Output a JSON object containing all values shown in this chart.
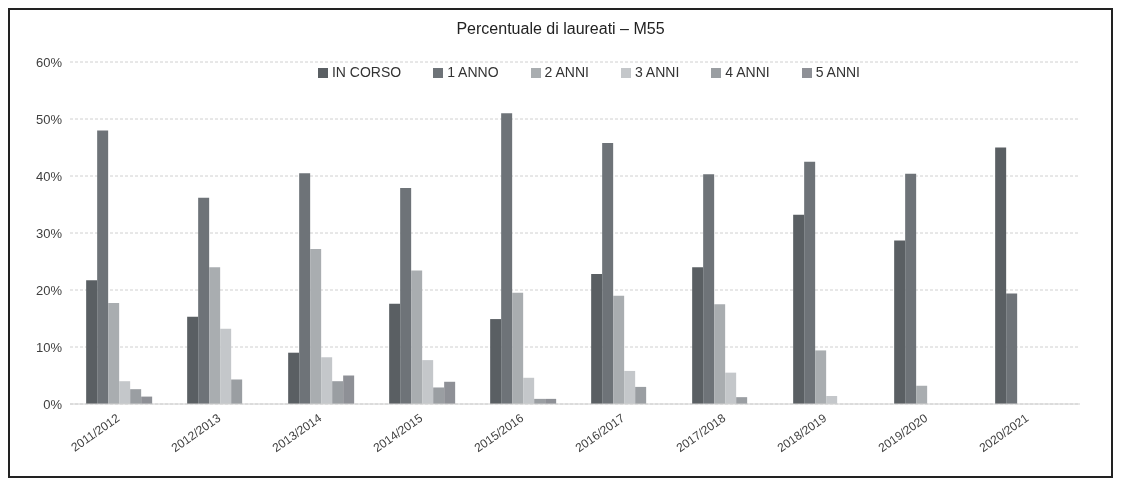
{
  "chart_data": {
    "type": "bar",
    "title": "Percentuale di laureati – M55",
    "categories": [
      "2011/2012",
      "2012/2013",
      "2013/2014",
      "2014/2015",
      "2015/2016",
      "2016/2017",
      "2017/2018",
      "2018/2019",
      "2019/2020",
      "2020/2021"
    ],
    "series": [
      {
        "name": "IN CORSO",
        "color": "#5a5f63",
        "values": [
          21.7,
          15.3,
          9,
          17.6,
          14.9,
          22.8,
          24,
          33.2,
          28.7,
          45
        ]
      },
      {
        "name": "1 ANNO",
        "color": "#6e7378",
        "values": [
          48,
          36.2,
          40.5,
          37.9,
          51,
          45.8,
          40.3,
          42.5,
          40.4,
          19.4
        ]
      },
      {
        "name": "2 ANNI",
        "color": "#a9adb0",
        "values": [
          17.7,
          24,
          27.2,
          23.4,
          19.5,
          19,
          17.5,
          9.4,
          3.2,
          null
        ]
      },
      {
        "name": "3 ANNI",
        "color": "#c4c7ca",
        "values": [
          4,
          13.2,
          8.2,
          7.7,
          4.6,
          5.8,
          5.5,
          1.4,
          null,
          null
        ]
      },
      {
        "name": "4 ANNI",
        "color": "#9a9ea2",
        "values": [
          2.6,
          4.3,
          4,
          2.9,
          0.9,
          3,
          1.2,
          null,
          null,
          null
        ]
      },
      {
        "name": "5 ANNI",
        "color": "#8e9096",
        "values": [
          1.3,
          null,
          5,
          3.9,
          0.9,
          null,
          null,
          null,
          null,
          null
        ]
      }
    ],
    "ylim": [
      0,
      60
    ],
    "yticks": [
      {
        "value": 0,
        "label": "0%"
      },
      {
        "value": 10,
        "label": "10%"
      },
      {
        "value": 20,
        "label": "20%"
      },
      {
        "value": 30,
        "label": "30%"
      },
      {
        "value": 40,
        "label": "40%"
      },
      {
        "value": 50,
        "label": "50%"
      },
      {
        "value": 60,
        "label": "60%"
      }
    ],
    "grid": "y",
    "legend": "top"
  }
}
